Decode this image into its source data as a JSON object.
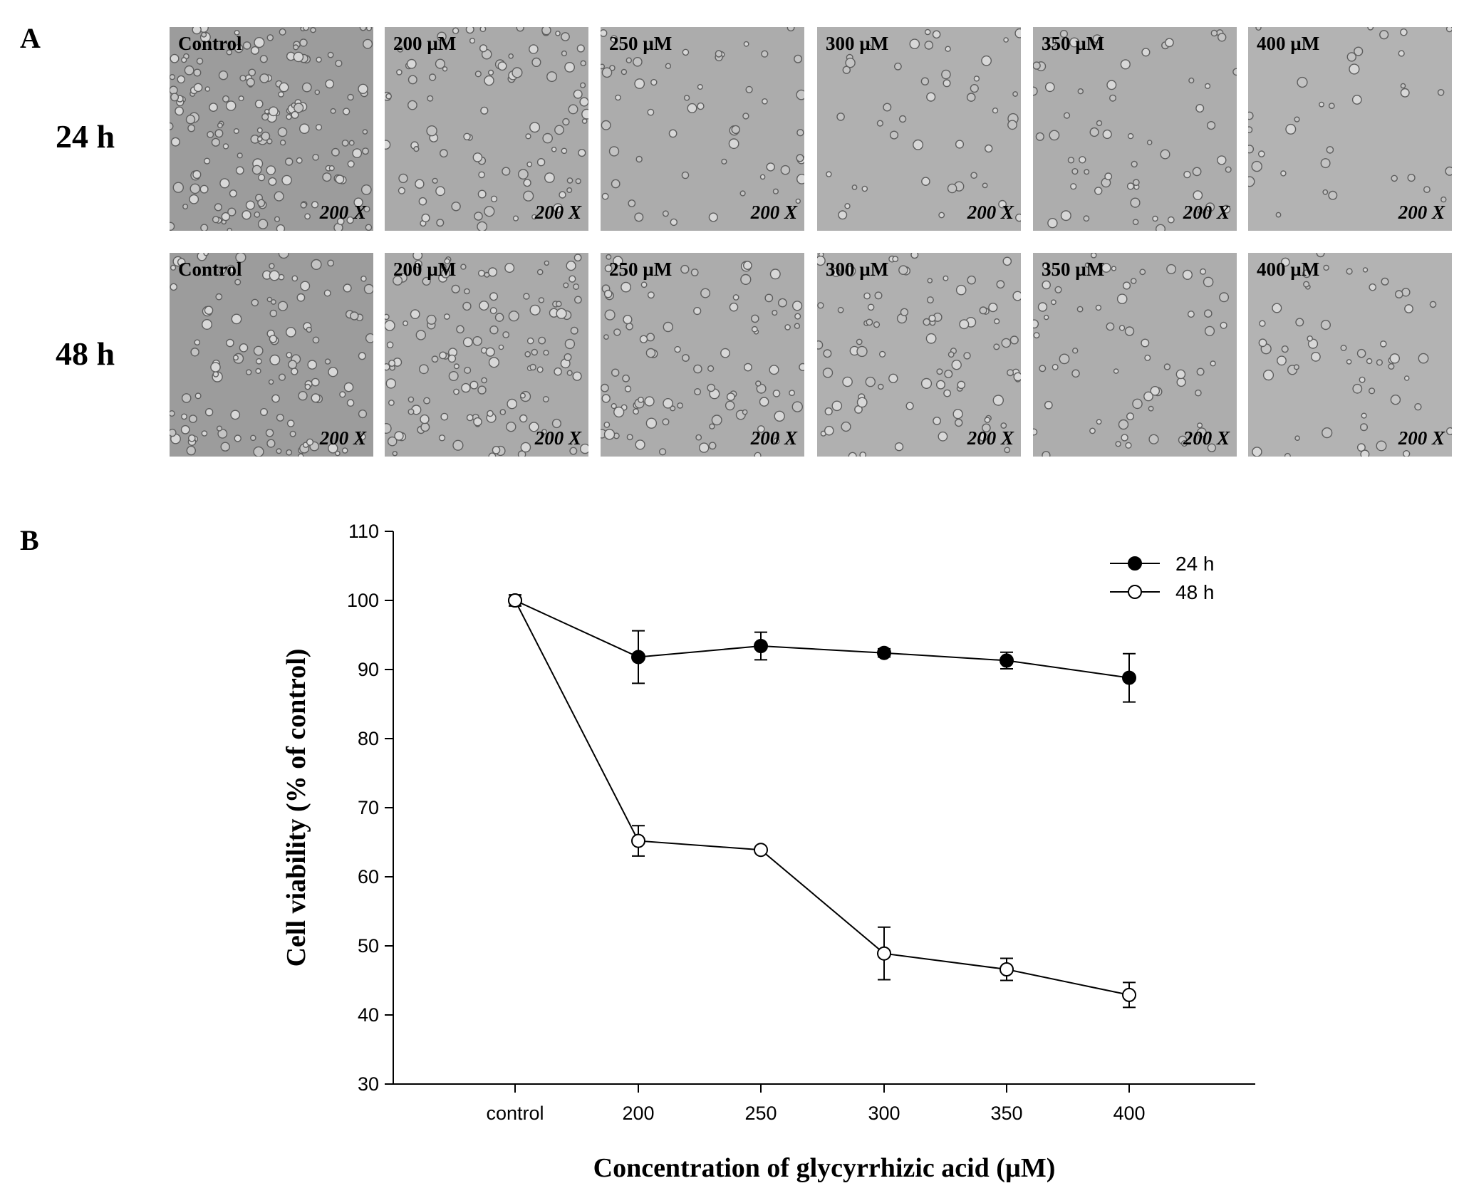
{
  "panel_a": {
    "letter": "A",
    "rows": [
      {
        "time_label": "24 h",
        "tiles": [
          {
            "label": "Control",
            "magnification": "200 X"
          },
          {
            "label": "200 µM",
            "magnification": "200 X"
          },
          {
            "label": "250 µM",
            "magnification": "200 X"
          },
          {
            "label": "300 µM",
            "magnification": "200 X"
          },
          {
            "label": "350 µM",
            "magnification": "200 X"
          },
          {
            "label": "400 µM",
            "magnification": "200 X"
          }
        ]
      },
      {
        "time_label": "48 h",
        "tiles": [
          {
            "label": "Control",
            "magnification": "200 X"
          },
          {
            "label": "200 µM",
            "magnification": "200 X"
          },
          {
            "label": "250 µM",
            "magnification": "200 X"
          },
          {
            "label": "300 µM",
            "magnification": "200 X"
          },
          {
            "label": "350 µM",
            "magnification": "200 X"
          },
          {
            "label": "400 µM",
            "magnification": "200 X"
          }
        ]
      }
    ],
    "tile_colors": [
      "#9c9c9c",
      "#aaaaaa",
      "#acacac",
      "#b0b0b0",
      "#adadad",
      "#b3b3b3"
    ]
  },
  "panel_b": {
    "letter": "B",
    "chart_data": {
      "type": "line",
      "categories": [
        "control",
        "200",
        "250",
        "300",
        "350",
        "400"
      ],
      "xlabel": "Concentration of glycyrrhizic acid (µM)",
      "ylabel": "Cell viability (% of control)",
      "ylim": [
        30,
        110
      ],
      "yticks": [
        30,
        40,
        50,
        60,
        70,
        80,
        90,
        100,
        110
      ],
      "legend_position": "top-right",
      "series": [
        {
          "name": "24 h",
          "marker": "filled-circle",
          "values": [
            100,
            91.8,
            93.4,
            92.4,
            91.3,
            88.8
          ],
          "errors": [
            0.8,
            3.8,
            2.0,
            0.6,
            1.2,
            3.5
          ]
        },
        {
          "name": "48 h",
          "marker": "open-circle",
          "values": [
            100,
            65.2,
            63.9,
            48.9,
            46.6,
            42.9
          ],
          "errors": [
            0.8,
            2.2,
            0.3,
            3.8,
            1.6,
            1.8
          ]
        }
      ]
    }
  }
}
